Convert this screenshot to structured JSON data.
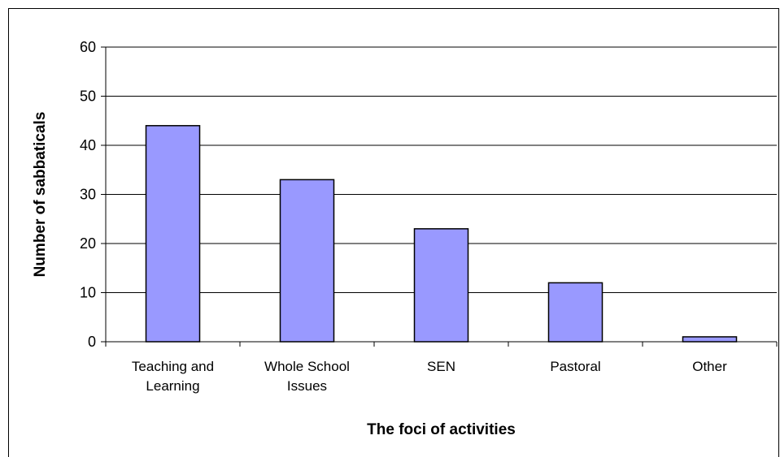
{
  "chart_data": {
    "type": "bar",
    "categories": [
      "Teaching and Learning",
      "Whole School Issues",
      "SEN",
      "Pastoral",
      "Other"
    ],
    "category_lines": [
      [
        "Teaching and",
        "Learning"
      ],
      [
        "Whole School",
        "Issues"
      ],
      [
        "SEN"
      ],
      [
        "Pastoral"
      ],
      [
        "Other"
      ]
    ],
    "values": [
      44,
      33,
      23,
      12,
      1
    ],
    "title": "",
    "xlabel": "The foci of activities",
    "ylabel": "Number of sabbaticals",
    "ylim": [
      0,
      60
    ],
    "yticks": [
      0,
      10,
      20,
      30,
      40,
      50,
      60
    ],
    "grid": true,
    "bar_color": "#9999ff",
    "bar_edge_color": "#000000"
  }
}
